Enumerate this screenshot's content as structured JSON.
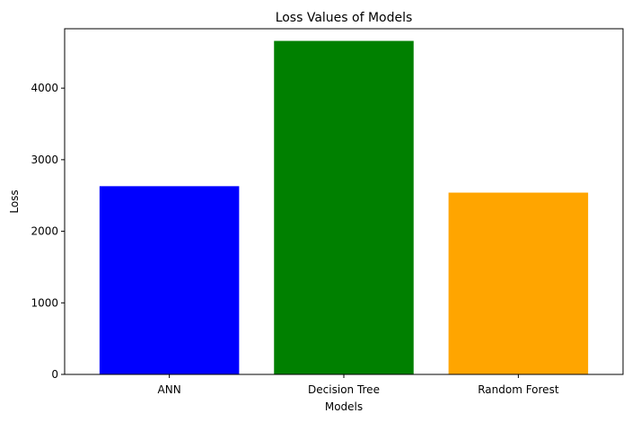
{
  "chart_data": {
    "type": "bar",
    "title": "Loss Values of Models",
    "xlabel": "Models",
    "ylabel": "Loss",
    "categories": [
      "ANN",
      "Decision Tree",
      "Random Forest"
    ],
    "values": [
      2630,
      4660,
      2540
    ],
    "colors": [
      "#0000ff",
      "#008000",
      "#ffa500"
    ],
    "ylim": [
      0,
      4830
    ],
    "yticks": [
      0,
      1000,
      2000,
      3000,
      4000
    ],
    "ytick_labels": [
      "0",
      "1000",
      "2000",
      "3000",
      "4000"
    ],
    "grid": false,
    "legend": "none"
  }
}
